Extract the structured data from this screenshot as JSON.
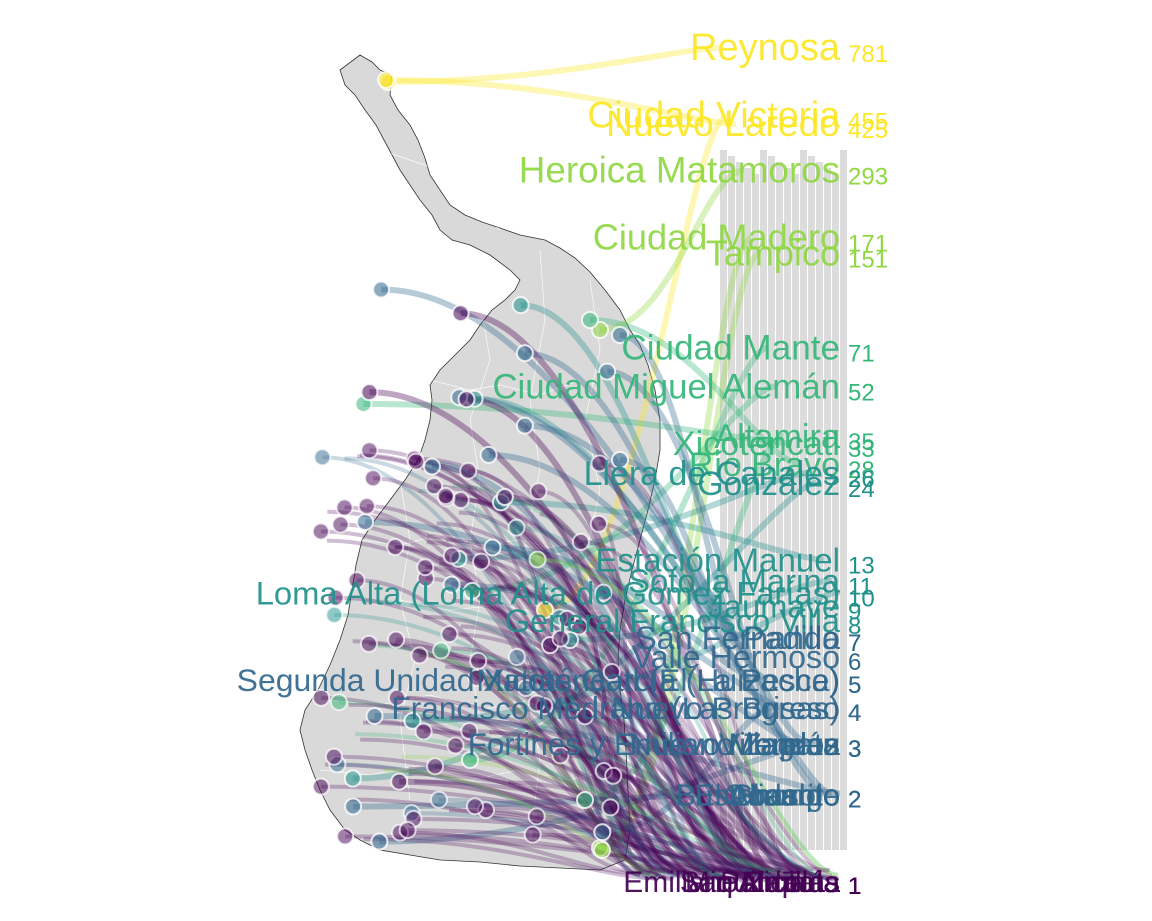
{
  "colors": {
    "scale": [
      "#440154",
      "#31688e",
      "#21918c",
      "#35b779",
      "#90d743",
      "#fde725"
    ],
    "state_fill": "#d9d9d9",
    "state_border": "#333333",
    "column_fill": "#bfbfbf"
  },
  "chart_data": {
    "type": "map",
    "description": "ranked place names with count values, flows from map locations to ranked labels",
    "labels": [
      {
        "name": "Reynosa",
        "value": "781"
      },
      {
        "name": "Ciudad Victoria",
        "value": "455"
      },
      {
        "name": "Nuevo Laredo",
        "value": "425"
      },
      {
        "name": "Heroica Matamoros",
        "value": "293"
      },
      {
        "name": "Ciudad Madero",
        "value": "171"
      },
      {
        "name": "Tampico",
        "value": "151"
      },
      {
        "name": "Ciudad Mante",
        "value": "71"
      },
      {
        "name": "Ciudad Miguel Alemán",
        "value": "52"
      },
      {
        "name": "Altamira",
        "value": "35"
      },
      {
        "name": "Xicoténcatl",
        "value": "33"
      },
      {
        "name": "Río Bravo",
        "value": "28"
      },
      {
        "name": "Llera de Canales",
        "value": "26"
      },
      {
        "name": "González",
        "value": "24"
      },
      {
        "name": "Estación Manuel",
        "value": "13"
      },
      {
        "name": "Soto la Marina",
        "value": "11"
      },
      {
        "name": "Loma Alta (Loma Alta de Gómez Farías)",
        "value": "10"
      },
      {
        "name": "Jaumave",
        "value": "9"
      },
      {
        "name": "General Francisco Villa",
        "value": "8"
      },
      {
        "name": "Padilla",
        "value": "7"
      },
      {
        "name": "San Fernando",
        "value": "7"
      },
      {
        "name": "Valle Hermoso",
        "value": "6"
      },
      {
        "name": "Segunda Unidad Xicoténcatl (El Huizache)",
        "value": "5"
      },
      {
        "name": "Matías García (La Pesca)",
        "value": "5"
      },
      {
        "name": "Francisco Medrano (Las Brisas)",
        "value": "4"
      },
      {
        "name": "Nuevo Progreso",
        "value": "4"
      },
      {
        "name": "Fortines y Emiliano Zapata",
        "value": "3"
      },
      {
        "name": "Nuevo Morelos",
        "value": "3"
      },
      {
        "name": "Mendez",
        "value": "3"
      },
      {
        "name": "Villagrán",
        "value": "3"
      },
      {
        "name": "El Chorrito",
        "value": "2"
      },
      {
        "name": "Abasolo",
        "value": "2"
      },
      {
        "name": "Hidalgo",
        "value": "2"
      },
      {
        "name": "Ocampo",
        "value": "2"
      },
      {
        "name": "Bustamante",
        "value": "2"
      },
      {
        "name": "Emiliano Zapata",
        "value": "1"
      },
      {
        "name": "San Nicolás",
        "value": "1"
      },
      {
        "name": "Aldama",
        "value": "1"
      },
      {
        "name": "Miquihuana",
        "value": "1"
      },
      {
        "name": "Palmillas",
        "value": "1"
      },
      {
        "name": "Tula",
        "value": "1"
      }
    ]
  }
}
